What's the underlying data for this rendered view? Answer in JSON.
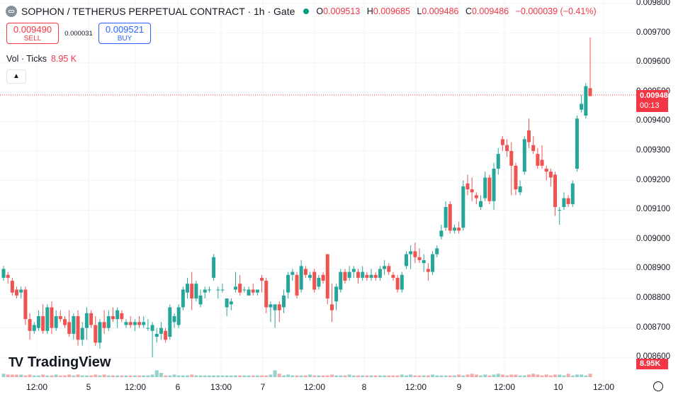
{
  "header": {
    "title": "SOPHON / TETHERUS PERPETUAL CONTRACT · 1h · Gate",
    "status_color": "#089981",
    "o_label": "O",
    "o_value": "0.009513",
    "h_label": "H",
    "h_value": "0.009685",
    "l_label": "L",
    "l_value": "0.009486",
    "c_label": "C",
    "c_value": "0.009486",
    "change": "−0.000039 (−0.41%)"
  },
  "trade": {
    "sell_price": "0.009490",
    "sell_label": "SELL",
    "spread": "0.000031",
    "buy_price": "0.009521",
    "buy_label": "BUY"
  },
  "volume_legend": {
    "label": "Vol · Ticks",
    "value": "8.95 K"
  },
  "price_scale": {
    "labels": [
      "0.009800",
      "0.009700",
      "0.009600",
      "0.009500",
      "0.009400",
      "0.009300",
      "0.009200",
      "0.009100",
      "0.009000",
      "0.008900",
      "0.008800",
      "0.008700",
      "0.008600"
    ],
    "last_price": "0.009486",
    "countdown": "00:13",
    "volume_tag": "8.95K"
  },
  "time_axis": {
    "labels": [
      "12:00",
      "5",
      "12:00",
      "6",
      "13:00",
      "7",
      "12:00",
      "8",
      "12:00",
      "9",
      "12:00",
      "10",
      "12:00"
    ]
  },
  "logo": {
    "text": "TradingView"
  },
  "colors": {
    "up": "#26a69a",
    "down": "#ef5350",
    "up_vol": "#96d1cb",
    "down_vol": "#f4aaa9"
  },
  "chart_data": {
    "type": "candlestick",
    "title": "SOPHON / TETHERUS PERPETUAL CONTRACT · 1h · Gate",
    "ylim": [
      0.00855,
      0.0098
    ],
    "grid": true,
    "candles": [
      {
        "o": 0.00887,
        "h": 0.00891,
        "l": 0.00886,
        "c": 0.0089
      },
      {
        "o": 0.00888,
        "h": 0.00889,
        "l": 0.00885,
        "c": 0.00887
      },
      {
        "o": 0.00886,
        "h": 0.00887,
        "l": 0.00881,
        "c": 0.00882
      },
      {
        "o": 0.00883,
        "h": 0.00884,
        "l": 0.0088,
        "c": 0.00881
      },
      {
        "o": 0.00882,
        "h": 0.00884,
        "l": 0.0088,
        "c": 0.00883
      },
      {
        "o": 0.00883,
        "h": 0.00884,
        "l": 0.00871,
        "c": 0.00873
      },
      {
        "o": 0.00873,
        "h": 0.00875,
        "l": 0.00866,
        "c": 0.00869
      },
      {
        "o": 0.00869,
        "h": 0.00872,
        "l": 0.00868,
        "c": 0.00871
      },
      {
        "o": 0.0087,
        "h": 0.00876,
        "l": 0.00869,
        "c": 0.00874
      },
      {
        "o": 0.00874,
        "h": 0.00878,
        "l": 0.00868,
        "c": 0.00869
      },
      {
        "o": 0.00869,
        "h": 0.00878,
        "l": 0.00868,
        "c": 0.00877
      },
      {
        "o": 0.00877,
        "h": 0.00879,
        "l": 0.00868,
        "c": 0.0087
      },
      {
        "o": 0.0087,
        "h": 0.00876,
        "l": 0.00869,
        "c": 0.00874
      },
      {
        "o": 0.00874,
        "h": 0.00876,
        "l": 0.00872,
        "c": 0.00873
      },
      {
        "o": 0.00873,
        "h": 0.00874,
        "l": 0.0087,
        "c": 0.00871
      },
      {
        "o": 0.00872,
        "h": 0.00876,
        "l": 0.00867,
        "c": 0.00868
      },
      {
        "o": 0.00868,
        "h": 0.00875,
        "l": 0.00866,
        "c": 0.00874
      },
      {
        "o": 0.00874,
        "h": 0.00876,
        "l": 0.00864,
        "c": 0.00866
      },
      {
        "o": 0.00866,
        "h": 0.00872,
        "l": 0.00864,
        "c": 0.0087
      },
      {
        "o": 0.0087,
        "h": 0.00877,
        "l": 0.00866,
        "c": 0.00875
      },
      {
        "o": 0.00875,
        "h": 0.00876,
        "l": 0.0087,
        "c": 0.00871
      },
      {
        "o": 0.00871,
        "h": 0.00874,
        "l": 0.00864,
        "c": 0.00865
      },
      {
        "o": 0.00865,
        "h": 0.00873,
        "l": 0.00863,
        "c": 0.00872
      },
      {
        "o": 0.00872,
        "h": 0.00876,
        "l": 0.00868,
        "c": 0.0087
      },
      {
        "o": 0.0087,
        "h": 0.00876,
        "l": 0.00869,
        "c": 0.00874
      },
      {
        "o": 0.00874,
        "h": 0.00877,
        "l": 0.00872,
        "c": 0.00873
      },
      {
        "o": 0.00873,
        "h": 0.00877,
        "l": 0.0087,
        "c": 0.00876
      },
      {
        "o": 0.00875,
        "h": 0.00876,
        "l": 0.00872,
        "c": 0.00873
      },
      {
        "o": 0.00871,
        "h": 0.00873,
        "l": 0.0087,
        "c": 0.00872
      },
      {
        "o": 0.00872,
        "h": 0.00874,
        "l": 0.0087,
        "c": 0.00871
      },
      {
        "o": 0.00871,
        "h": 0.00873,
        "l": 0.00869,
        "c": 0.00872
      },
      {
        "o": 0.00872,
        "h": 0.00874,
        "l": 0.0087,
        "c": 0.00871
      },
      {
        "o": 0.00871,
        "h": 0.00874,
        "l": 0.0087,
        "c": 0.00872
      },
      {
        "o": 0.0087,
        "h": 0.00873,
        "l": 0.00869,
        "c": 0.0087
      },
      {
        "o": 0.00869,
        "h": 0.00872,
        "l": 0.0086,
        "c": 0.00871
      },
      {
        "o": 0.00867,
        "h": 0.0087,
        "l": 0.00865,
        "c": 0.00868
      },
      {
        "o": 0.00868,
        "h": 0.00872,
        "l": 0.00866,
        "c": 0.0087
      },
      {
        "o": 0.00869,
        "h": 0.0087,
        "l": 0.00865,
        "c": 0.00866
      },
      {
        "o": 0.00867,
        "h": 0.00878,
        "l": 0.00866,
        "c": 0.00877
      },
      {
        "o": 0.00872,
        "h": 0.00875,
        "l": 0.0087,
        "c": 0.00874
      },
      {
        "o": 0.00871,
        "h": 0.00878,
        "l": 0.0087,
        "c": 0.00877
      },
      {
        "o": 0.00877,
        "h": 0.00884,
        "l": 0.00876,
        "c": 0.00883
      },
      {
        "o": 0.00882,
        "h": 0.00887,
        "l": 0.0088,
        "c": 0.00885
      },
      {
        "o": 0.00885,
        "h": 0.00889,
        "l": 0.00876,
        "c": 0.0088
      },
      {
        "o": 0.0088,
        "h": 0.00886,
        "l": 0.00879,
        "c": 0.00885
      },
      {
        "o": 0.00878,
        "h": 0.00883,
        "l": 0.00877,
        "c": 0.00881
      },
      {
        "o": 0.00882,
        "h": 0.00884,
        "l": 0.0088,
        "c": 0.00883
      },
      {
        "o": 0.00883,
        "h": 0.00884,
        "l": 0.00882,
        "c": 0.00883
      },
      {
        "o": 0.00887,
        "h": 0.00895,
        "l": 0.00886,
        "c": 0.00894
      },
      {
        "o": 0.00883,
        "h": 0.00884,
        "l": 0.0088,
        "c": 0.00883
      },
      {
        "o": 0.00883,
        "h": 0.00885,
        "l": 0.00882,
        "c": 0.00883
      },
      {
        "o": 0.00877,
        "h": 0.0088,
        "l": 0.00874,
        "c": 0.0088
      },
      {
        "o": 0.00878,
        "h": 0.0088,
        "l": 0.00876,
        "c": 0.00879
      },
      {
        "o": 0.00883,
        "h": 0.00889,
        "l": 0.00882,
        "c": 0.00884
      },
      {
        "o": 0.00885,
        "h": 0.00888,
        "l": 0.00881,
        "c": 0.00882
      },
      {
        "o": 0.00883,
        "h": 0.00884,
        "l": 0.00882,
        "c": 0.00883
      },
      {
        "o": 0.00881,
        "h": 0.00884,
        "l": 0.00881,
        "c": 0.00883
      },
      {
        "o": 0.00883,
        "h": 0.00885,
        "l": 0.00881,
        "c": 0.00882
      },
      {
        "o": 0.00882,
        "h": 0.00883,
        "l": 0.00881,
        "c": 0.00883
      },
      {
        "o": 0.00887,
        "h": 0.00888,
        "l": 0.00882,
        "c": 0.00886
      },
      {
        "o": 0.00886,
        "h": 0.00887,
        "l": 0.00875,
        "c": 0.00877
      },
      {
        "o": 0.00877,
        "h": 0.00879,
        "l": 0.00872,
        "c": 0.00878
      },
      {
        "o": 0.00876,
        "h": 0.00878,
        "l": 0.0087,
        "c": 0.00878
      },
      {
        "o": 0.00878,
        "h": 0.00879,
        "l": 0.00872,
        "c": 0.00876
      },
      {
        "o": 0.00877,
        "h": 0.00883,
        "l": 0.00875,
        "c": 0.00881
      },
      {
        "o": 0.00882,
        "h": 0.00889,
        "l": 0.0088,
        "c": 0.00888
      },
      {
        "o": 0.00888,
        "h": 0.0089,
        "l": 0.00886,
        "c": 0.00889
      },
      {
        "o": 0.00888,
        "h": 0.00889,
        "l": 0.0088,
        "c": 0.00881
      },
      {
        "o": 0.00883,
        "h": 0.00893,
        "l": 0.00882,
        "c": 0.00891
      },
      {
        "o": 0.0089,
        "h": 0.00891,
        "l": 0.00887,
        "c": 0.00888
      },
      {
        "o": 0.00887,
        "h": 0.00889,
        "l": 0.00886,
        "c": 0.00888
      },
      {
        "o": 0.00889,
        "h": 0.0089,
        "l": 0.00882,
        "c": 0.00883
      },
      {
        "o": 0.00884,
        "h": 0.00888,
        "l": 0.00883,
        "c": 0.00887
      },
      {
        "o": 0.00888,
        "h": 0.00889,
        "l": 0.00885,
        "c": 0.00886
      },
      {
        "o": 0.00895,
        "h": 0.00895,
        "l": 0.00878,
        "c": 0.0088
      },
      {
        "o": 0.00878,
        "h": 0.00885,
        "l": 0.00872,
        "c": 0.00876
      },
      {
        "o": 0.00879,
        "h": 0.00885,
        "l": 0.00876,
        "c": 0.00884
      },
      {
        "o": 0.00883,
        "h": 0.0089,
        "l": 0.00882,
        "c": 0.00889
      },
      {
        "o": 0.00889,
        "h": 0.0089,
        "l": 0.00885,
        "c": 0.00886
      },
      {
        "o": 0.00887,
        "h": 0.00891,
        "l": 0.00886,
        "c": 0.00889
      },
      {
        "o": 0.00889,
        "h": 0.00891,
        "l": 0.00887,
        "c": 0.0089
      },
      {
        "o": 0.00889,
        "h": 0.0089,
        "l": 0.00885,
        "c": 0.00887
      },
      {
        "o": 0.00887,
        "h": 0.00891,
        "l": 0.00886,
        "c": 0.00889
      },
      {
        "o": 0.00888,
        "h": 0.00889,
        "l": 0.00886,
        "c": 0.00887
      },
      {
        "o": 0.00887,
        "h": 0.0089,
        "l": 0.00886,
        "c": 0.00888
      },
      {
        "o": 0.00888,
        "h": 0.00889,
        "l": 0.00886,
        "c": 0.00887
      },
      {
        "o": 0.00887,
        "h": 0.00891,
        "l": 0.00886,
        "c": 0.0089
      },
      {
        "o": 0.0089,
        "h": 0.00893,
        "l": 0.00888,
        "c": 0.00891
      },
      {
        "o": 0.00891,
        "h": 0.00892,
        "l": 0.00888,
        "c": 0.00889
      },
      {
        "o": 0.00888,
        "h": 0.00889,
        "l": 0.00886,
        "c": 0.00887
      },
      {
        "o": 0.00887,
        "h": 0.00888,
        "l": 0.00882,
        "c": 0.00883
      },
      {
        "o": 0.00883,
        "h": 0.00889,
        "l": 0.00882,
        "c": 0.00888
      },
      {
        "o": 0.00891,
        "h": 0.00896,
        "l": 0.0089,
        "c": 0.00895
      },
      {
        "o": 0.00895,
        "h": 0.00898,
        "l": 0.0089,
        "c": 0.00896
      },
      {
        "o": 0.00896,
        "h": 0.00899,
        "l": 0.00892,
        "c": 0.00894
      },
      {
        "o": 0.00894,
        "h": 0.00897,
        "l": 0.00892,
        "c": 0.00893
      },
      {
        "o": 0.00892,
        "h": 0.00895,
        "l": 0.00889,
        "c": 0.00893
      },
      {
        "o": 0.0089,
        "h": 0.00892,
        "l": 0.00886,
        "c": 0.00889
      },
      {
        "o": 0.00889,
        "h": 0.00896,
        "l": 0.00888,
        "c": 0.00895
      },
      {
        "o": 0.00895,
        "h": 0.00898,
        "l": 0.00894,
        "c": 0.00897
      },
      {
        "o": 0.00901,
        "h": 0.00905,
        "l": 0.009,
        "c": 0.00903
      },
      {
        "o": 0.00904,
        "h": 0.00913,
        "l": 0.00903,
        "c": 0.00911
      },
      {
        "o": 0.00912,
        "h": 0.00913,
        "l": 0.00902,
        "c": 0.00903
      },
      {
        "o": 0.00903,
        "h": 0.00905,
        "l": 0.00902,
        "c": 0.00904
      },
      {
        "o": 0.00904,
        "h": 0.00906,
        "l": 0.00902,
        "c": 0.00903
      },
      {
        "o": 0.00904,
        "h": 0.0092,
        "l": 0.00903,
        "c": 0.00918
      },
      {
        "o": 0.00919,
        "h": 0.00922,
        "l": 0.00915,
        "c": 0.00917
      },
      {
        "o": 0.00917,
        "h": 0.00921,
        "l": 0.00913,
        "c": 0.00916
      },
      {
        "o": 0.00915,
        "h": 0.00916,
        "l": 0.00912,
        "c": 0.00914
      },
      {
        "o": 0.00911,
        "h": 0.00915,
        "l": 0.0091,
        "c": 0.00913
      },
      {
        "o": 0.00914,
        "h": 0.00923,
        "l": 0.00913,
        "c": 0.00921
      },
      {
        "o": 0.00921,
        "h": 0.00922,
        "l": 0.00912,
        "c": 0.00913
      },
      {
        "o": 0.00913,
        "h": 0.00926,
        "l": 0.0091,
        "c": 0.00924
      },
      {
        "o": 0.00924,
        "h": 0.00931,
        "l": 0.00922,
        "c": 0.00929
      },
      {
        "o": 0.00934,
        "h": 0.00935,
        "l": 0.0093,
        "c": 0.00932
      },
      {
        "o": 0.00932,
        "h": 0.00934,
        "l": 0.00928,
        "c": 0.0093
      },
      {
        "o": 0.0093,
        "h": 0.00933,
        "l": 0.00915,
        "c": 0.00925
      },
      {
        "o": 0.00925,
        "h": 0.00926,
        "l": 0.00915,
        "c": 0.00917
      },
      {
        "o": 0.00916,
        "h": 0.0092,
        "l": 0.00915,
        "c": 0.00918
      },
      {
        "o": 0.00923,
        "h": 0.00935,
        "l": 0.00922,
        "c": 0.00934
      },
      {
        "o": 0.00937,
        "h": 0.00941,
        "l": 0.00931,
        "c": 0.00933
      },
      {
        "o": 0.00932,
        "h": 0.00935,
        "l": 0.00929,
        "c": 0.0093
      },
      {
        "o": 0.00929,
        "h": 0.00931,
        "l": 0.00924,
        "c": 0.00925
      },
      {
        "o": 0.00927,
        "h": 0.00932,
        "l": 0.00924,
        "c": 0.00925
      },
      {
        "o": 0.00924,
        "h": 0.00925,
        "l": 0.0092,
        "c": 0.00923
      },
      {
        "o": 0.00923,
        "h": 0.00924,
        "l": 0.00918,
        "c": 0.00921
      },
      {
        "o": 0.00922,
        "h": 0.00923,
        "l": 0.00908,
        "c": 0.00911
      },
      {
        "o": 0.0091,
        "h": 0.00911,
        "l": 0.00905,
        "c": 0.0091
      },
      {
        "o": 0.00911,
        "h": 0.00916,
        "l": 0.0091,
        "c": 0.00914
      },
      {
        "o": 0.00914,
        "h": 0.00915,
        "l": 0.00911,
        "c": 0.00912
      },
      {
        "o": 0.00912,
        "h": 0.0092,
        "l": 0.00911,
        "c": 0.00919
      },
      {
        "o": 0.00924,
        "h": 0.00942,
        "l": 0.00923,
        "c": 0.00941
      },
      {
        "o": 0.00944,
        "h": 0.00949,
        "l": 0.00943,
        "c": 0.00946
      },
      {
        "o": 0.00942,
        "h": 0.00953,
        "l": 0.00941,
        "c": 0.00952
      },
      {
        "o": 0.009513,
        "h": 0.009685,
        "l": 0.009486,
        "c": 0.009486
      }
    ],
    "volume": [
      4,
      3,
      3,
      3,
      3,
      2,
      3,
      2,
      2,
      3,
      2,
      2,
      3,
      2,
      2,
      3,
      2,
      3,
      2,
      2,
      2,
      3,
      2,
      3,
      2,
      2,
      2,
      2,
      2,
      2,
      2,
      2,
      2,
      2,
      3,
      8,
      5,
      2,
      2,
      3,
      2,
      2,
      2,
      3,
      2,
      2,
      2,
      2,
      2,
      2,
      2,
      2,
      2,
      2,
      2,
      2,
      2,
      2,
      2,
      2,
      2,
      3,
      8,
      4,
      2,
      3,
      2,
      2,
      2,
      2,
      3,
      2,
      2,
      2,
      2,
      3,
      2,
      2,
      2,
      3,
      2,
      2,
      2,
      2,
      2,
      2,
      2,
      2,
      2,
      2,
      2,
      3,
      2,
      3,
      2,
      2,
      2,
      2,
      3,
      2,
      2,
      2,
      2,
      2,
      3,
      2,
      3,
      4,
      3,
      2,
      3,
      2,
      3,
      4,
      3,
      2,
      3,
      3,
      2,
      2,
      3,
      4,
      3,
      2,
      3,
      2,
      3,
      3,
      2,
      4,
      2,
      3,
      3,
      2,
      4,
      3
    ],
    "volume_ylim": [
      0,
      60
    ]
  }
}
